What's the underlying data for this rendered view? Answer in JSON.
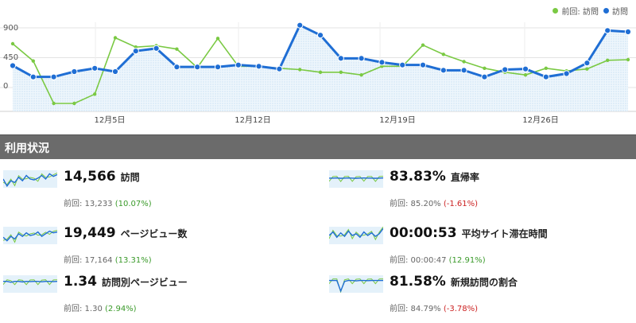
{
  "legend": {
    "previous_label": "前回: 訪問",
    "current_label": "訪問",
    "previous_color": "#7ac943",
    "current_color": "#1f6ed4"
  },
  "chart_data": {
    "type": "line",
    "y_ticks": [
      "900",
      "450",
      "0"
    ],
    "ylim": [
      0,
      900
    ],
    "x_tick_labels": [
      "12月5日",
      "12月12日",
      "12月19日",
      "12月26日"
    ],
    "series": [
      {
        "name": "訪問",
        "values": [
          330,
          160,
          160,
          240,
          290,
          240,
          550,
          590,
          310,
          310,
          310,
          340,
          320,
          280,
          940,
          790,
          440,
          440,
          380,
          340,
          340,
          260,
          260,
          160,
          270,
          280,
          160,
          210,
          370,
          860,
          840
        ]
      },
      {
        "name": "前回: 訪問",
        "values": [
          660,
          400,
          -240,
          -240,
          -100,
          750,
          610,
          630,
          580,
          300,
          740,
          320,
          320,
          290,
          270,
          230,
          230,
          190,
          320,
          320,
          640,
          500,
          390,
          290,
          230,
          190,
          290,
          250,
          280,
          410,
          420
        ]
      }
    ]
  },
  "section": {
    "title": "利用状況"
  },
  "metrics": [
    {
      "value": "14,566",
      "name": "訪問",
      "prev_label": "前回: 13,233",
      "change": "(10.07%)",
      "trend": "pos"
    },
    {
      "value": "83.83%",
      "name": "直帰率",
      "prev_label": "前回: 85.20%",
      "change": "(-1.61%)",
      "trend": "neg"
    },
    {
      "value": "19,449",
      "name": "ページビュー数",
      "prev_label": "前回: 17,164",
      "change": "(13.31%)",
      "trend": "pos"
    },
    {
      "value": "00:00:53",
      "name": "平均サイト滞在時間",
      "prev_label": "前回: 00:00:47",
      "change": "(12.91%)",
      "trend": "pos"
    },
    {
      "value": "1.34",
      "name": "訪問別ページビュー",
      "prev_label": "前回: 1.30",
      "change": "(2.94%)",
      "trend": "pos"
    },
    {
      "value": "81.58%",
      "name": "新規訪問の割合",
      "prev_label": "前回: 84.79%",
      "change": "(-3.78%)",
      "trend": "neg"
    }
  ]
}
